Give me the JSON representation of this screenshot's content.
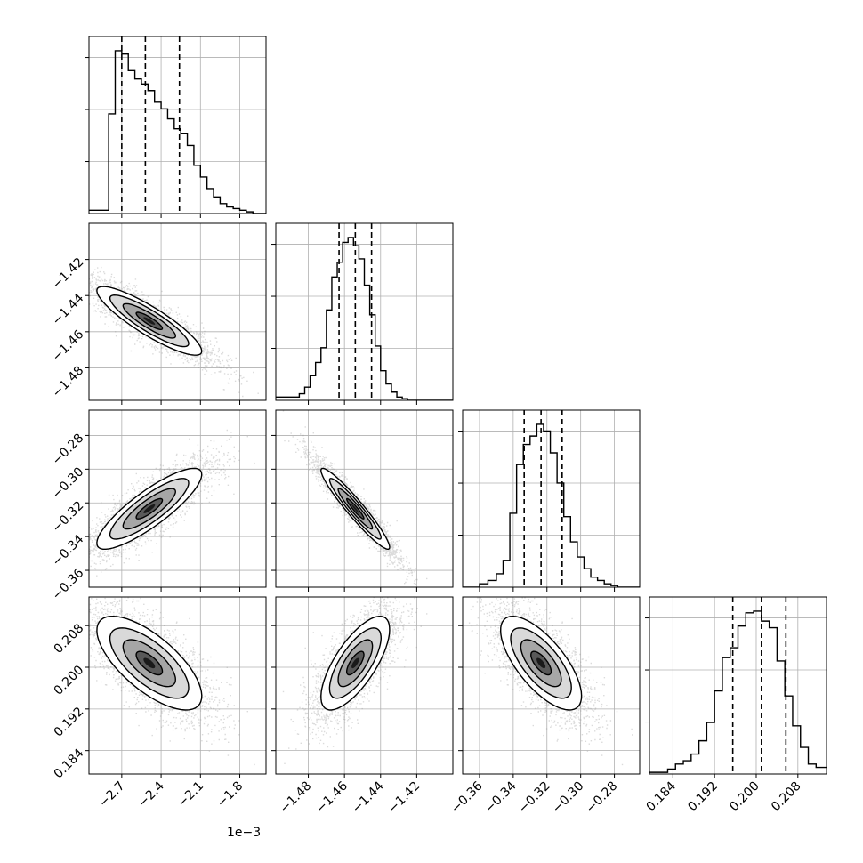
{
  "chart_data": {
    "type": "corner",
    "n_params": 4,
    "offset_text": "1e−3",
    "params": [
      {
        "range": [
          -2.95,
          -1.6
        ],
        "ticks": [
          -2.7,
          -2.4,
          -2.1,
          -1.8
        ],
        "tick_labels": [
          "−2.7",
          "−2.4",
          "−2.1",
          "−1.8"
        ],
        "quantiles": [
          -2.7,
          -2.52,
          -2.26
        ],
        "hist_edges": [
          -2.95,
          -2.8,
          -2.75,
          -2.7,
          -2.65,
          -2.6,
          -2.55,
          -2.5,
          -2.45,
          -2.4,
          -2.35,
          -2.3,
          -2.25,
          -2.2,
          -2.15,
          -2.1,
          -2.05,
          -2.0,
          -1.95,
          -1.9,
          -1.85,
          -1.8,
          -1.75,
          -1.7,
          -1.6
        ],
        "hist_counts": [
          0.02,
          0.6,
          0.98,
          0.96,
          0.86,
          0.81,
          0.78,
          0.74,
          0.67,
          0.63,
          0.57,
          0.51,
          0.48,
          0.41,
          0.29,
          0.22,
          0.15,
          0.1,
          0.06,
          0.04,
          0.03,
          0.02,
          0.01,
          0.0
        ]
      },
      {
        "range": [
          -1.498,
          -1.4
        ],
        "ticks": [
          -1.48,
          -1.46,
          -1.44,
          -1.42
        ],
        "tick_labels": [
          "−1.48",
          "−1.46",
          "−1.44",
          "−1.42"
        ],
        "quantiles": [
          -1.463,
          -1.454,
          -1.445
        ],
        "hist_edges": [
          -1.498,
          -1.485,
          -1.482,
          -1.479,
          -1.476,
          -1.473,
          -1.47,
          -1.467,
          -1.464,
          -1.461,
          -1.458,
          -1.455,
          -1.452,
          -1.449,
          -1.446,
          -1.443,
          -1.44,
          -1.437,
          -1.434,
          -1.431,
          -1.428,
          -1.425,
          -1.41,
          -1.4
        ],
        "hist_counts": [
          0.02,
          0.04,
          0.08,
          0.15,
          0.23,
          0.32,
          0.55,
          0.75,
          0.84,
          0.96,
          0.99,
          0.94,
          0.86,
          0.7,
          0.52,
          0.33,
          0.18,
          0.1,
          0.05,
          0.02,
          0.01,
          0.0,
          0.0
        ]
      },
      {
        "range": [
          -0.37,
          -0.265
        ],
        "ticks": [
          -0.36,
          -0.34,
          -0.32,
          -0.3,
          -0.28
        ],
        "tick_labels": [
          "−0.36",
          "−0.34",
          "−0.32",
          "−0.30",
          "−0.28"
        ],
        "quantiles": [
          -0.3335,
          -0.3235,
          -0.311
        ],
        "hist_edges": [
          -0.37,
          -0.36,
          -0.355,
          -0.35,
          -0.346,
          -0.342,
          -0.338,
          -0.334,
          -0.33,
          -0.326,
          -0.322,
          -0.318,
          -0.314,
          -0.31,
          -0.306,
          -0.302,
          -0.298,
          -0.294,
          -0.29,
          -0.286,
          -0.282,
          -0.278,
          -0.274,
          -0.265
        ],
        "hist_counts": [
          0.0,
          0.02,
          0.04,
          0.08,
          0.16,
          0.44,
          0.73,
          0.85,
          0.9,
          0.97,
          0.93,
          0.8,
          0.62,
          0.42,
          0.27,
          0.18,
          0.11,
          0.06,
          0.04,
          0.02,
          0.01,
          0.0,
          0.0
        ]
      },
      {
        "range": [
          0.1795,
          0.2135
        ],
        "ticks": [
          0.184,
          0.192,
          0.2,
          0.208
        ],
        "tick_labels": [
          "0.184",
          "0.192",
          "0.200",
          "0.208"
        ],
        "quantiles": [
          0.1955,
          0.201,
          0.2057
        ],
        "hist_edges": [
          0.1795,
          0.183,
          0.1845,
          0.186,
          0.1875,
          0.189,
          0.1905,
          0.192,
          0.1935,
          0.195,
          0.1965,
          0.198,
          0.1995,
          0.201,
          0.2025,
          0.204,
          0.2055,
          0.207,
          0.2085,
          0.21,
          0.2115,
          0.2135
        ],
        "hist_counts": [
          0.01,
          0.03,
          0.06,
          0.08,
          0.12,
          0.2,
          0.31,
          0.5,
          0.7,
          0.76,
          0.89,
          0.97,
          0.98,
          0.92,
          0.88,
          0.68,
          0.47,
          0.29,
          0.16,
          0.06,
          0.04
        ]
      }
    ],
    "pairs": [
      {
        "x": 0,
        "y": 1,
        "rho": -0.88,
        "mx": -2.49,
        "my": -1.454,
        "sx": 0.2,
        "sy": 0.0095
      },
      {
        "x": 0,
        "y": 2,
        "rho": 0.85,
        "mx": -2.49,
        "my": -0.3235,
        "sx": 0.2,
        "sy": 0.012
      },
      {
        "x": 1,
        "y": 2,
        "rho": -0.95,
        "mx": -1.454,
        "my": -0.3235,
        "sx": 0.0095,
        "sy": 0.012
      },
      {
        "x": 0,
        "y": 3,
        "rho": -0.7,
        "mx": -2.49,
        "my": 0.2008,
        "sx": 0.2,
        "sy": 0.0045
      },
      {
        "x": 1,
        "y": 3,
        "rho": 0.72,
        "mx": -1.454,
        "my": 0.2008,
        "sx": 0.0095,
        "sy": 0.0045
      },
      {
        "x": 2,
        "y": 3,
        "rho": -0.7,
        "mx": -0.3235,
        "my": 0.2008,
        "sx": 0.012,
        "sy": 0.0045
      }
    ],
    "contour_levels_sigma": [
      0.5,
      1.0,
      1.5,
      2.0
    ],
    "grid": true
  }
}
